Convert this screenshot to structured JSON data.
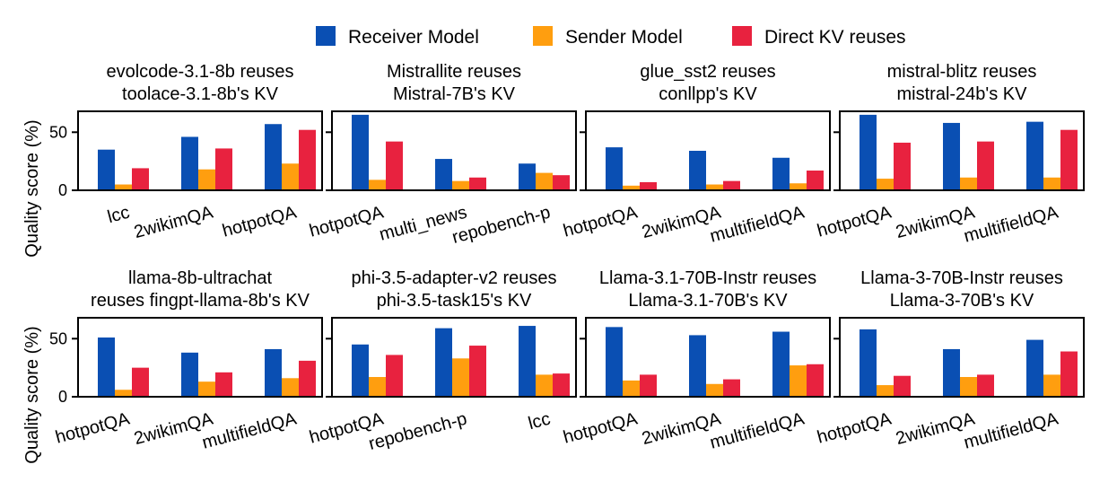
{
  "legend": {
    "items": [
      {
        "label": "Receiver Model",
        "color": "#0a4fb3"
      },
      {
        "label": "Sender Model",
        "color": "#ff9e0f"
      },
      {
        "label": "Direct KV reuses",
        "color": "#e8223f"
      }
    ]
  },
  "chart_data": [
    {
      "type": "bar",
      "title_lines": [
        "evolcode-3.1-8b reuses",
        "toolace-3.1-8b's KV"
      ],
      "categories": [
        "lcc",
        "2wikimQA",
        "hotpotQA"
      ],
      "ylabel": "Quality score (%)",
      "yticks": [
        0,
        50
      ],
      "ylim": [
        0,
        68
      ],
      "series": [
        {
          "name": "Receiver Model",
          "values": [
            35,
            46,
            57
          ]
        },
        {
          "name": "Sender Model",
          "values": [
            5,
            18,
            23
          ]
        },
        {
          "name": "Direct KV reuses",
          "values": [
            19,
            36,
            52
          ]
        }
      ]
    },
    {
      "type": "bar",
      "title_lines": [
        "Mistrallite reuses",
        "Mistral-7B's KV"
      ],
      "categories": [
        "hotpotQA",
        "multi_news",
        "repobench-p"
      ],
      "ylabel": "",
      "yticks": [
        0,
        50
      ],
      "ylim": [
        0,
        68
      ],
      "series": [
        {
          "name": "Receiver Model",
          "values": [
            65,
            27,
            23
          ]
        },
        {
          "name": "Sender Model",
          "values": [
            9,
            8,
            15
          ]
        },
        {
          "name": "Direct KV reuses",
          "values": [
            42,
            11,
            13
          ]
        }
      ]
    },
    {
      "type": "bar",
      "title_lines": [
        "glue_sst2 reuses",
        "conllpp's KV"
      ],
      "categories": [
        "hotpotQA",
        "2wikimQA",
        "multifieldQA"
      ],
      "ylabel": "",
      "yticks": [
        0,
        50
      ],
      "ylim": [
        0,
        68
      ],
      "series": [
        {
          "name": "Receiver Model",
          "values": [
            37,
            34,
            28
          ]
        },
        {
          "name": "Sender Model",
          "values": [
            4,
            5,
            6
          ]
        },
        {
          "name": "Direct KV reuses",
          "values": [
            7,
            8,
            17
          ]
        }
      ]
    },
    {
      "type": "bar",
      "title_lines": [
        "mistral-blitz reuses",
        "mistral-24b's KV"
      ],
      "categories": [
        "hotpotQA",
        "2wikimQA",
        "multifieldQA"
      ],
      "ylabel": "",
      "yticks": [
        0,
        50
      ],
      "ylim": [
        0,
        68
      ],
      "series": [
        {
          "name": "Receiver Model",
          "values": [
            65,
            58,
            59
          ]
        },
        {
          "name": "Sender Model",
          "values": [
            10,
            11,
            11
          ]
        },
        {
          "name": "Direct KV reuses",
          "values": [
            41,
            42,
            52
          ]
        }
      ]
    },
    {
      "type": "bar",
      "title_lines": [
        "llama-8b-ultrachat",
        "reuses fingpt-llama-8b's KV"
      ],
      "categories": [
        "hotpotQA",
        "2wikimQA",
        "multifieldQA"
      ],
      "ylabel": "Quality score (%)",
      "yticks": [
        0,
        50
      ],
      "ylim": [
        0,
        68
      ],
      "series": [
        {
          "name": "Receiver Model",
          "values": [
            51,
            38,
            41
          ]
        },
        {
          "name": "Sender Model",
          "values": [
            6,
            13,
            16
          ]
        },
        {
          "name": "Direct KV reuses",
          "values": [
            25,
            21,
            31
          ]
        }
      ]
    },
    {
      "type": "bar",
      "title_lines": [
        "phi-3.5-adapter-v2 reuses",
        "phi-3.5-task15's KV"
      ],
      "categories": [
        "hotpotQA",
        "repobench-p",
        "lcc"
      ],
      "ylabel": "",
      "yticks": [
        0,
        50
      ],
      "ylim": [
        0,
        68
      ],
      "series": [
        {
          "name": "Receiver Model",
          "values": [
            45,
            59,
            61
          ]
        },
        {
          "name": "Sender Model",
          "values": [
            17,
            33,
            19
          ]
        },
        {
          "name": "Direct KV reuses",
          "values": [
            36,
            44,
            20
          ]
        }
      ]
    },
    {
      "type": "bar",
      "title_lines": [
        "Llama-3.1-70B-Instr reuses",
        "Llama-3.1-70B's KV"
      ],
      "categories": [
        "hotpotQA",
        "2wikimQA",
        "multifieldQA"
      ],
      "ylabel": "",
      "yticks": [
        0,
        50
      ],
      "ylim": [
        0,
        68
      ],
      "series": [
        {
          "name": "Receiver Model",
          "values": [
            60,
            53,
            56
          ]
        },
        {
          "name": "Sender Model",
          "values": [
            14,
            11,
            27
          ]
        },
        {
          "name": "Direct KV reuses",
          "values": [
            19,
            15,
            28
          ]
        }
      ]
    },
    {
      "type": "bar",
      "title_lines": [
        "Llama-3-70B-Instr reuses",
        "Llama-3-70B's KV"
      ],
      "categories": [
        "hotpotQA",
        "2wikimQA",
        "multifieldQA"
      ],
      "ylabel": "",
      "yticks": [
        0,
        50
      ],
      "ylim": [
        0,
        68
      ],
      "series": [
        {
          "name": "Receiver Model",
          "values": [
            58,
            41,
            49
          ]
        },
        {
          "name": "Sender Model",
          "values": [
            10,
            17,
            19
          ]
        },
        {
          "name": "Direct KV reuses",
          "values": [
            18,
            19,
            39
          ]
        }
      ]
    }
  ]
}
